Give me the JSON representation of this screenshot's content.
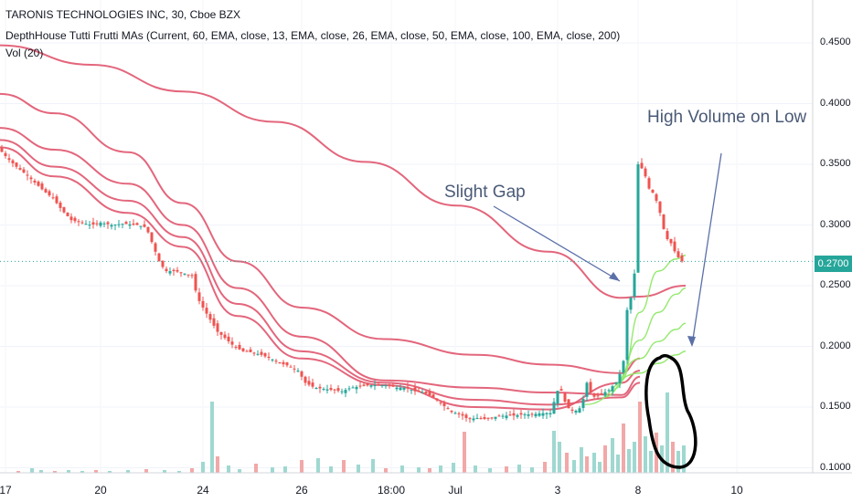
{
  "header": {
    "symbol_line": "TARONIS TECHNOLOGIES INC, 30, Cboe BZX",
    "indicator_line": "DepthHouse Tutti Frutti MAs (Current, 60, EMA, close, 13, EMA, close, 26, EMA, close, 50, EMA, close, 100, EMA, close, 200)",
    "volume_line": "Vol (20)"
  },
  "annotations": {
    "gap_text": "Slight Gap",
    "volume_text": "High Volume on Low"
  },
  "current_price": "0.2700",
  "colors": {
    "up": "#26a69a",
    "down": "#ef5350",
    "ma": "#e0556e",
    "ma_light": "#8ee866",
    "price_line": "#26a69a",
    "arrow": "#5b70a8",
    "circle": "#000000",
    "vol_up": "#9fd8d0",
    "vol_down": "#f2a8a8"
  },
  "chart_data": {
    "type": "candlestick",
    "title": "TARONIS TECHNOLOGIES INC, 30, Cboe BZX",
    "ylim": [
      0.1,
      0.47
    ],
    "y_ticks": [
      "0.4500",
      "0.4000",
      "0.3500",
      "0.3000",
      "0.2500",
      "0.2000",
      "0.1500",
      "0.1000"
    ],
    "x_ticks": [
      "17",
      "20",
      "24",
      "26",
      "18:00",
      "Jul",
      "3",
      "8",
      "10"
    ],
    "current_price": 0.27,
    "price_path": [
      [
        0,
        0.362
      ],
      [
        8,
        0.355
      ],
      [
        18,
        0.348
      ],
      [
        28,
        0.342
      ],
      [
        38,
        0.335
      ],
      [
        48,
        0.328
      ],
      [
        58,
        0.322
      ],
      [
        68,
        0.312
      ],
      [
        78,
        0.304
      ],
      [
        88,
        0.302
      ],
      [
        100,
        0.3
      ],
      [
        110,
        0.302
      ],
      [
        122,
        0.3
      ],
      [
        135,
        0.301
      ],
      [
        150,
        0.3
      ],
      [
        160,
        0.298
      ],
      [
        168,
        0.282
      ],
      [
        175,
        0.268
      ],
      [
        182,
        0.262
      ],
      [
        192,
        0.262
      ],
      [
        202,
        0.26
      ],
      [
        210,
        0.258
      ],
      [
        216,
        0.24
      ],
      [
        222,
        0.232
      ],
      [
        230,
        0.222
      ],
      [
        238,
        0.212
      ],
      [
        246,
        0.207
      ],
      [
        256,
        0.2
      ],
      [
        266,
        0.196
      ],
      [
        276,
        0.195
      ],
      [
        286,
        0.193
      ],
      [
        296,
        0.19
      ],
      [
        306,
        0.186
      ],
      [
        316,
        0.184
      ],
      [
        326,
        0.18
      ],
      [
        334,
        0.17
      ],
      [
        344,
        0.166
      ],
      [
        354,
        0.165
      ],
      [
        364,
        0.164
      ],
      [
        374,
        0.163
      ],
      [
        384,
        0.166
      ],
      [
        394,
        0.167
      ],
      [
        404,
        0.168
      ],
      [
        414,
        0.168
      ],
      [
        424,
        0.168
      ],
      [
        434,
        0.166
      ],
      [
        444,
        0.166
      ],
      [
        454,
        0.163
      ],
      [
        464,
        0.162
      ],
      [
        474,
        0.158
      ],
      [
        484,
        0.152
      ],
      [
        494,
        0.146
      ],
      [
        504,
        0.144
      ],
      [
        512,
        0.14
      ],
      [
        522,
        0.141
      ],
      [
        532,
        0.14
      ],
      [
        542,
        0.142
      ],
      [
        552,
        0.143
      ],
      [
        562,
        0.143
      ],
      [
        572,
        0.144
      ],
      [
        582,
        0.144
      ],
      [
        592,
        0.145
      ],
      [
        602,
        0.145
      ],
      [
        612,
        0.168
      ],
      [
        620,
        0.15
      ],
      [
        628,
        0.146
      ],
      [
        636,
        0.15
      ],
      [
        642,
        0.17
      ],
      [
        648,
        0.158
      ],
      [
        656,
        0.16
      ],
      [
        666,
        0.164
      ],
      [
        676,
        0.172
      ],
      [
        682,
        0.188
      ],
      [
        686,
        0.23
      ],
      [
        690,
        0.24
      ],
      [
        696,
        0.27
      ],
      [
        698,
        0.35
      ],
      [
        704,
        0.345
      ],
      [
        710,
        0.33
      ],
      [
        716,
        0.325
      ],
      [
        722,
        0.31
      ],
      [
        728,
        0.29
      ],
      [
        734,
        0.285
      ],
      [
        740,
        0.275
      ],
      [
        746,
        0.27
      ]
    ],
    "series": [
      {
        "name": "EMA 200",
        "color": "#e0556e",
        "points": [
          [
            0,
            0.448
          ],
          [
            100,
            0.432
          ],
          [
            200,
            0.41
          ],
          [
            300,
            0.385
          ],
          [
            400,
            0.352
          ],
          [
            500,
            0.316
          ],
          [
            600,
            0.278
          ],
          [
            680,
            0.24
          ],
          [
            700,
            0.241
          ],
          [
            750,
            0.25
          ]
        ]
      },
      {
        "name": "EMA 100",
        "color": "#e0556e",
        "points": [
          [
            0,
            0.408
          ],
          [
            60,
            0.392
          ],
          [
            140,
            0.36
          ],
          [
            200,
            0.318
          ],
          [
            260,
            0.27
          ],
          [
            330,
            0.232
          ],
          [
            420,
            0.206
          ],
          [
            520,
            0.193
          ],
          [
            600,
            0.185
          ],
          [
            680,
            0.178
          ],
          [
            700,
            0.19
          ]
        ]
      },
      {
        "name": "EMA 50",
        "color": "#e0556e",
        "points": [
          [
            0,
            0.38
          ],
          [
            60,
            0.362
          ],
          [
            140,
            0.334
          ],
          [
            200,
            0.3
          ],
          [
            260,
            0.248
          ],
          [
            330,
            0.208
          ],
          [
            420,
            0.172
          ],
          [
            520,
            0.166
          ],
          [
            600,
            0.162
          ],
          [
            680,
            0.16
          ],
          [
            700,
            0.175
          ]
        ]
      },
      {
        "name": "EMA 26",
        "color": "#e0556e",
        "points": [
          [
            0,
            0.37
          ],
          [
            60,
            0.348
          ],
          [
            140,
            0.32
          ],
          [
            200,
            0.29
          ],
          [
            260,
            0.235
          ],
          [
            330,
            0.196
          ],
          [
            420,
            0.17
          ],
          [
            520,
            0.156
          ],
          [
            600,
            0.152
          ],
          [
            680,
            0.158
          ],
          [
            700,
            0.17
          ]
        ]
      },
      {
        "name": "EMA 13",
        "color": "#e0556e",
        "points": [
          [
            0,
            0.364
          ],
          [
            60,
            0.34
          ],
          [
            140,
            0.31
          ],
          [
            200,
            0.282
          ],
          [
            260,
            0.225
          ],
          [
            330,
            0.19
          ],
          [
            420,
            0.168
          ],
          [
            520,
            0.15
          ],
          [
            600,
            0.148
          ],
          [
            680,
            0.17
          ],
          [
            700,
            0.18
          ]
        ]
      },
      {
        "name": "EMA light 1",
        "color": "#8ee866",
        "points": [
          [
            680,
            0.172
          ],
          [
            700,
            0.228
          ],
          [
            720,
            0.262
          ],
          [
            740,
            0.272
          ],
          [
            750,
            0.275
          ]
        ]
      },
      {
        "name": "EMA light 2",
        "color": "#8ee866",
        "points": [
          [
            672,
            0.165
          ],
          [
            700,
            0.205
          ],
          [
            720,
            0.228
          ],
          [
            740,
            0.243
          ],
          [
            750,
            0.248
          ]
        ]
      },
      {
        "name": "EMA light 3",
        "color": "#8ee866",
        "points": [
          [
            660,
            0.158
          ],
          [
            700,
            0.19
          ],
          [
            720,
            0.204
          ],
          [
            740,
            0.214
          ],
          [
            750,
            0.219
          ]
        ]
      },
      {
        "name": "EMA light 4",
        "color": "#8ee866",
        "points": [
          [
            640,
            0.152
          ],
          [
            700,
            0.178
          ],
          [
            720,
            0.186
          ],
          [
            740,
            0.193
          ],
          [
            750,
            0.196
          ]
        ]
      }
    ],
    "volume": [
      [
        20,
        2
      ],
      [
        35,
        5
      ],
      [
        45,
        3
      ],
      [
        60,
        2
      ],
      [
        75,
        3
      ],
      [
        90,
        2
      ],
      [
        105,
        3
      ],
      [
        120,
        2
      ],
      [
        140,
        3
      ],
      [
        160,
        4
      ],
      [
        180,
        3
      ],
      [
        196,
        2
      ],
      [
        210,
        5
      ],
      [
        222,
        12
      ],
      [
        232,
        78
      ],
      [
        238,
        18
      ],
      [
        250,
        8
      ],
      [
        262,
        4
      ],
      [
        280,
        10
      ],
      [
        298,
        6
      ],
      [
        312,
        7
      ],
      [
        330,
        14
      ],
      [
        348,
        16
      ],
      [
        362,
        7
      ],
      [
        376,
        14
      ],
      [
        392,
        9
      ],
      [
        408,
        15
      ],
      [
        422,
        5
      ],
      [
        440,
        8
      ],
      [
        458,
        6
      ],
      [
        470,
        5
      ],
      [
        482,
        8
      ],
      [
        496,
        11
      ],
      [
        508,
        45
      ],
      [
        520,
        8
      ],
      [
        536,
        5
      ],
      [
        554,
        7
      ],
      [
        568,
        9
      ],
      [
        582,
        6
      ],
      [
        596,
        12
      ],
      [
        606,
        46
      ],
      [
        612,
        34
      ],
      [
        620,
        22
      ],
      [
        628,
        14
      ],
      [
        636,
        28
      ],
      [
        642,
        18
      ],
      [
        650,
        22
      ],
      [
        656,
        12
      ],
      [
        662,
        30
      ],
      [
        670,
        38
      ],
      [
        676,
        20
      ],
      [
        682,
        54
      ],
      [
        688,
        26
      ],
      [
        694,
        34
      ],
      [
        700,
        78
      ],
      [
        706,
        40
      ],
      [
        712,
        24
      ],
      [
        718,
        44
      ],
      [
        724,
        30
      ],
      [
        730,
        88
      ],
      [
        736,
        34
      ],
      [
        742,
        24
      ],
      [
        748,
        30
      ]
    ]
  }
}
